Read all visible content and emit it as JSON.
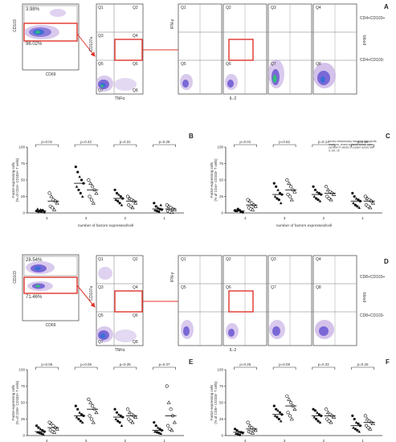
{
  "panels": {
    "A": {
      "letter": "A",
      "gate_cd103_pct": "3.98%",
      "gate_cd69_pct": "96.02%",
      "axis_cd103": "CD103",
      "axis_cd69": "CD69",
      "axis_cd107a": "CD107a",
      "axis_tnfa": "TNFα",
      "axis_ifng": "IFN-γ",
      "axis_il2": "IL-2",
      "quadrants_gate": [
        "Q1",
        "Q2",
        "Q3",
        "Q4",
        "Q5",
        "Q6",
        "Q7",
        "Q8"
      ],
      "quadrants_sub": [
        "Q1",
        "Q2",
        "Q3",
        "Q4",
        "Q5",
        "Q6",
        "Q7",
        "Q8"
      ],
      "row_label_top": "CD4+CD103+",
      "row_label_bottom": "CD4+CD103-",
      "side_label": "blood"
    },
    "D": {
      "letter": "D",
      "gate_cd103_pct": "28.54%",
      "gate_cd69_pct": "71.46%",
      "axis_cd103": "CD103",
      "axis_cd69": "CD69",
      "axis_cd107a": "CD107a",
      "axis_tnfa": "TNFα",
      "axis_ifng": "IFN-γ",
      "axis_il2": "IL-2",
      "quadrants_gate": [
        "Q1",
        "Q2",
        "Q3",
        "Q4",
        "Q5",
        "Q6",
        "Q7",
        "Q8"
      ],
      "quadrants_sub": [
        "Q1",
        "Q2",
        "Q3",
        "Q4",
        "Q5",
        "Q6",
        "Q7",
        "Q8"
      ],
      "row_label_top": "CD8+CD103+",
      "row_label_bottom": "CD8+CD103-",
      "side_label": "blood"
    }
  },
  "scatter_panels": [
    {
      "letter": "B",
      "ylabel": "Factor-expressing cells\n(% of CD4+ CD103+ T cells)",
      "xlabel": "number of factors expressed/cell",
      "categories": [
        "4",
        "3",
        "2",
        "1"
      ],
      "pvalues": [
        "p=0.01",
        "p=0.42",
        "p=0.31",
        "p=0.28"
      ],
      "ylim": [
        0,
        100
      ],
      "yticks": [
        "0",
        "25",
        "50",
        "75",
        "100"
      ],
      "annotation": ""
    },
    {
      "letter": "C",
      "ylabel": "Factor-expressing cells\n(% of CD4+ CD103- T cells)",
      "xlabel": "number of factors expressed/cell",
      "categories": [
        "4",
        "3",
        "2",
        "1"
      ],
      "pvalues": [
        "p=0.01",
        "p=0.62",
        "p=0.14",
        "p=0.86"
      ],
      "ylim": [
        0,
        100
      ],
      "yticks": [
        "0",
        "25",
        "50",
        "75",
        "100"
      ],
      "annotation": "circles=inflammatory triangles=nonspecific reactions, closed symbols=blood, open symbols=2 weeks of explant culture with IL-2/IL-15"
    },
    {
      "letter": "E",
      "ylabel": "Factor-expressing cells\n(% of CD8+ CD103+ T cells)",
      "xlabel": "number of factors expressed/cell",
      "categories": [
        "4",
        "3",
        "2",
        "1"
      ],
      "pvalues": [
        "p=0.06",
        "p=0.06",
        "p=0.35",
        "p=0.37"
      ],
      "ylim": [
        0,
        100
      ],
      "yticks": [
        "0",
        "25",
        "50",
        "75",
        "100"
      ],
      "annotation": ""
    },
    {
      "letter": "F",
      "ylabel": "Factor-expressing cells\n(% of CD8+ CD103- T cells)",
      "xlabel": "number of factors expressed/cell",
      "categories": [
        "4",
        "3",
        "2",
        "1"
      ],
      "pvalues": [
        "p=0.25",
        "p=0.08",
        "p=0.32",
        "p=0.25"
      ],
      "ylim": [
        0,
        100
      ],
      "yticks": [
        "0",
        "25",
        "50",
        "75",
        "100"
      ],
      "annotation": ""
    }
  ],
  "chart_data": [
    {
      "type": "scatter",
      "panel": "B",
      "categories": [
        "4",
        "3",
        "2",
        "1"
      ],
      "xlabel": "number of factors expressed/cell",
      "ylabel": "Factor-expressing cells (% of CD4+ CD103+ T cells)",
      "ylim": [
        0,
        100
      ],
      "series": [
        {
          "values": [
            [
              3,
              2,
              5,
              4,
              1,
              6,
              3,
              2,
              4
            ],
            [
              70,
              62,
              55,
              50,
              45,
              40,
              35,
              30,
              25
            ],
            [
              35,
              30,
              28,
              25,
              22,
              20,
              18,
              15,
              12
            ],
            [
              15,
              10,
              8,
              6,
              5,
              4,
              3,
              2,
              12
            ]
          ]
        },
        {
          "values": [
            [
              30,
              25,
              20,
              18,
              15,
              10,
              8,
              5
            ],
            [
              50,
              45,
              40,
              35,
              30,
              25,
              20,
              15
            ],
            [
              25,
              22,
              20,
              18,
              15,
              12,
              10,
              8
            ],
            [
              12,
              10,
              8,
              6,
              5,
              3,
              2,
              1
            ]
          ]
        }
      ]
    },
    {
      "type": "scatter",
      "panel": "C",
      "categories": [
        "4",
        "3",
        "2",
        "1"
      ],
      "xlabel": "number of factors expressed/cell",
      "ylabel": "Factor-expressing cells (% of CD4+ CD103- T cells)",
      "ylim": [
        0,
        100
      ],
      "series": [
        {
          "values": [
            [
              4,
              3,
              5,
              2,
              1,
              3,
              6,
              4,
              2
            ],
            [
              45,
              40,
              35,
              30,
              28,
              25,
              22,
              20,
              15
            ],
            [
              40,
              35,
              32,
              30,
              28,
              25,
              22,
              20,
              18
            ],
            [
              30,
              25,
              22,
              20,
              18,
              15,
              12,
              10,
              8
            ]
          ]
        },
        {
          "values": [
            [
              20,
              18,
              15,
              12,
              10,
              8,
              6,
              5
            ],
            [
              50,
              45,
              40,
              35,
              32,
              28,
              25,
              20
            ],
            [
              40,
              35,
              32,
              30,
              28,
              25,
              22,
              20
            ],
            [
              25,
              22,
              20,
              18,
              15,
              12,
              10,
              8
            ]
          ]
        }
      ]
    },
    {
      "type": "scatter",
      "panel": "E",
      "categories": [
        "4",
        "3",
        "2",
        "1"
      ],
      "xlabel": "number of factors expressed/cell",
      "ylabel": "Factor-expressing cells (% of CD8+ CD103+ T cells)",
      "ylim": [
        0,
        100
      ],
      "series": [
        {
          "values": [
            [
              15,
              12,
              10,
              8,
              6,
              5,
              4,
              3,
              2
            ],
            [
              45,
              40,
              35,
              32,
              30,
              28,
              25,
              22,
              20
            ],
            [
              40,
              35,
              32,
              30,
              28,
              25,
              22,
              20,
              15
            ],
            [
              20,
              15,
              12,
              10,
              8,
              6,
              5,
              4,
              3
            ]
          ]
        },
        {
          "values": [
            [
              20,
              18,
              15,
              12,
              10,
              8,
              6,
              5
            ],
            [
              55,
              50,
              45,
              40,
              35,
              30,
              25,
              20
            ],
            [
              40,
              35,
              32,
              30,
              28,
              25,
              22,
              20
            ],
            [
              75,
              50,
              40,
              30,
              20,
              15,
              10,
              8
            ]
          ]
        }
      ]
    },
    {
      "type": "scatter",
      "panel": "F",
      "categories": [
        "4",
        "3",
        "2",
        "1"
      ],
      "xlabel": "number of factors expressed/cell",
      "ylabel": "Factor-expressing cells (% of CD8+ CD103- T cells)",
      "ylim": [
        0,
        100
      ],
      "series": [
        {
          "values": [
            [
              10,
              8,
              6,
              5,
              4,
              3,
              2,
              1,
              5
            ],
            [
              45,
              40,
              38,
              35,
              32,
              30,
              28,
              25,
              22
            ],
            [
              40,
              38,
              35,
              32,
              30,
              28,
              25,
              22,
              20
            ],
            [
              30,
              25,
              20,
              18,
              15,
              12,
              10,
              8,
              6
            ]
          ]
        },
        {
          "values": [
            [
              20,
              15,
              12,
              10,
              8,
              6,
              5,
              4
            ],
            [
              60,
              55,
              50,
              45,
              40,
              35,
              30,
              25
            ],
            [
              40,
              35,
              32,
              30,
              28,
              25,
              22,
              20
            ],
            [
              30,
              25,
              22,
              20,
              18,
              15,
              12,
              10
            ]
          ]
        }
      ]
    }
  ],
  "colors": {
    "gate_red": "#e0332a",
    "axis": "#333333",
    "density_low": "#c9b3e6",
    "density_mid": "#7a68d6",
    "density_high": "#3b6fd6",
    "density_core": "#2fbf7a"
  }
}
